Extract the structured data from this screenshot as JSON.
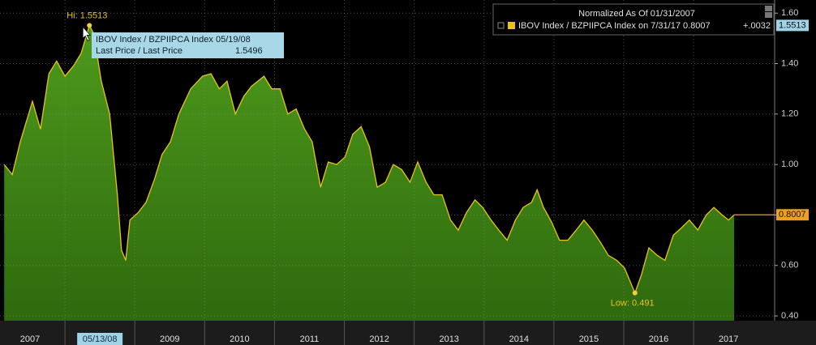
{
  "chart_data": {
    "type": "area",
    "x": [
      2007.13,
      2007.245,
      2007.36,
      2007.535,
      2007.65,
      2007.77,
      2007.88,
      2008.0,
      2008.12,
      2008.23,
      2008.35,
      2008.41,
      2008.52,
      2008.64,
      2008.75,
      2008.81,
      2008.87,
      2008.93,
      2009.05,
      2009.16,
      2009.28,
      2009.39,
      2009.51,
      2009.63,
      2009.8,
      2009.97,
      2010.09,
      2010.21,
      2010.32,
      2010.44,
      2010.56,
      2010.67,
      2010.85,
      2010.96,
      2011.08,
      2011.19,
      2011.31,
      2011.43,
      2011.54,
      2011.66,
      2011.77,
      2011.89,
      2012.01,
      2012.12,
      2012.24,
      2012.36,
      2012.47,
      2012.59,
      2012.7,
      2012.82,
      2012.94,
      2013.05,
      2013.17,
      2013.28,
      2013.4,
      2013.52,
      2013.63,
      2013.75,
      2013.87,
      2013.98,
      2014.1,
      2014.21,
      2014.33,
      2014.45,
      2014.56,
      2014.68,
      2014.76,
      2014.85,
      2014.97,
      2015.08,
      2015.2,
      2015.32,
      2015.43,
      2015.55,
      2015.67,
      2015.78,
      2015.9,
      2016.01,
      2016.16,
      2016.25,
      2016.36,
      2016.48,
      2016.59,
      2016.71,
      2016.83,
      2016.94,
      2017.06,
      2017.18,
      2017.29,
      2017.41,
      2017.5,
      2017.58
    ],
    "series": [
      {
        "name": "IBOV Index / BZPIIPCA Index on 7/31/17 0.8007",
        "color": "#e8c31c",
        "fill": "#3f7f16",
        "values": [
          1.0,
          0.96,
          1.09,
          1.25,
          1.14,
          1.36,
          1.41,
          1.35,
          1.39,
          1.44,
          1.5513,
          1.52,
          1.33,
          1.2,
          0.88,
          0.66,
          0.62,
          0.78,
          0.81,
          0.85,
          0.94,
          1.04,
          1.09,
          1.2,
          1.3,
          1.35,
          1.36,
          1.3,
          1.33,
          1.2,
          1.27,
          1.31,
          1.35,
          1.3,
          1.3,
          1.2,
          1.22,
          1.14,
          1.09,
          0.91,
          1.01,
          1.0,
          1.03,
          1.12,
          1.15,
          1.07,
          0.91,
          0.93,
          1.0,
          0.98,
          0.93,
          1.01,
          0.93,
          0.88,
          0.88,
          0.78,
          0.74,
          0.81,
          0.86,
          0.83,
          0.78,
          0.74,
          0.7,
          0.78,
          0.83,
          0.85,
          0.9,
          0.83,
          0.77,
          0.7,
          0.7,
          0.74,
          0.78,
          0.74,
          0.69,
          0.64,
          0.62,
          0.59,
          0.491,
          0.56,
          0.67,
          0.64,
          0.62,
          0.72,
          0.75,
          0.78,
          0.74,
          0.8,
          0.83,
          0.8,
          0.78,
          0.8007
        ]
      }
    ],
    "xlim": [
      2007.07,
      2018.16
    ],
    "xticks": [
      2007,
      {
        "value": 2008,
        "label": "05/13/08"
      },
      2009,
      2010,
      2011,
      2012,
      2013,
      2014,
      2015,
      2016,
      2017
    ],
    "ylim": [
      0.381,
      1.652
    ],
    "yticks": [
      {
        "value": 0.4,
        "label": "0.40"
      },
      {
        "value": 0.6,
        "label": "0.60"
      },
      {
        "value": 0.8,
        "label": "0.80"
      },
      {
        "value": 1.0,
        "label": "1.00"
      },
      {
        "value": 1.2,
        "label": "1.20"
      },
      {
        "value": 1.4,
        "label": "1.40"
      },
      {
        "value": 1.6,
        "label": "1.60"
      }
    ],
    "grid": true,
    "legend_title": "Normalized As Of 01/31/2007",
    "legend_change": "+.0032",
    "high_label": "Hi: 1.5513",
    "low_label": "Low: 0.491",
    "tooltip": {
      "title": "IBOV Index / BZPIIPCA Index 05/19/08",
      "label": "Last Price / Last Price",
      "value": 1.5496
    },
    "price_tags": [
      {
        "value": 1.5513,
        "color": "#9fd3e6"
      },
      {
        "value": 0.8007,
        "color": "#f0a020"
      }
    ]
  }
}
